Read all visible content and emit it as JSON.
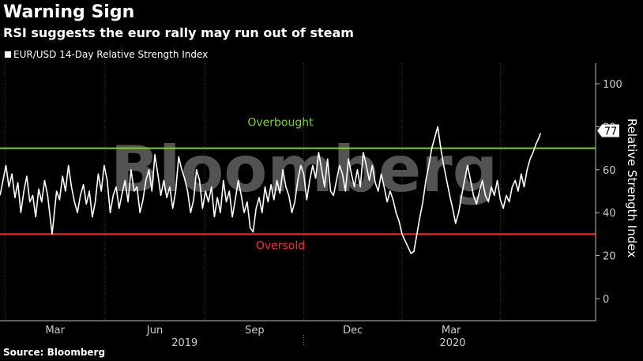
{
  "title": "Warning Sign",
  "subtitle": "RSI suggests the euro rally may run out of steam",
  "source": "Source: Bloomberg",
  "watermark": "Bloomberg",
  "colors": {
    "line": "#ffffff",
    "overbought": "#7ed321",
    "oversold": "#ff2a2a",
    "background": "#000000"
  },
  "chart_data": {
    "type": "line",
    "ylabel": "Relative Strength Index",
    "ylim": [
      0,
      100
    ],
    "yticks": [
      0,
      20,
      40,
      60,
      80,
      100
    ],
    "xlim": [
      0,
      400
    ],
    "month_ticks": [
      {
        "label": "Mar",
        "x": 37
      },
      {
        "label": "Jun",
        "x": 104
      },
      {
        "label": "Sep",
        "x": 171
      },
      {
        "label": "Dec",
        "x": 237
      },
      {
        "label": "Mar",
        "x": 303
      }
    ],
    "year_ticks": [
      {
        "label": "2019",
        "x": 124
      },
      {
        "label": "2020",
        "x": 304
      }
    ],
    "thresholds": [
      {
        "label": "Overbought",
        "value": 70
      },
      {
        "label": "Oversold",
        "value": 30
      }
    ],
    "last_value_label": "77",
    "series": [
      {
        "values": [
          [
            0,
            48
          ],
          [
            2,
            55
          ],
          [
            4,
            62
          ],
          [
            6,
            52
          ],
          [
            8,
            58
          ],
          [
            10,
            47
          ],
          [
            12,
            54
          ],
          [
            14,
            40
          ],
          [
            16,
            50
          ],
          [
            18,
            57
          ],
          [
            20,
            45
          ],
          [
            22,
            48
          ],
          [
            24,
            38
          ],
          [
            26,
            51
          ],
          [
            28,
            45
          ],
          [
            30,
            55
          ],
          [
            32,
            48
          ],
          [
            35,
            30
          ],
          [
            38,
            50
          ],
          [
            40,
            46
          ],
          [
            42,
            57
          ],
          [
            44,
            50
          ],
          [
            46,
            62
          ],
          [
            48,
            52
          ],
          [
            50,
            45
          ],
          [
            52,
            40
          ],
          [
            54,
            48
          ],
          [
            56,
            53
          ],
          [
            58,
            44
          ],
          [
            60,
            50
          ],
          [
            62,
            38
          ],
          [
            64,
            45
          ],
          [
            66,
            58
          ],
          [
            68,
            50
          ],
          [
            70,
            62
          ],
          [
            72,
            55
          ],
          [
            74,
            40
          ],
          [
            76,
            48
          ],
          [
            78,
            52
          ],
          [
            80,
            42
          ],
          [
            82,
            49
          ],
          [
            84,
            55
          ],
          [
            86,
            45
          ],
          [
            88,
            60
          ],
          [
            90,
            50
          ],
          [
            92,
            52
          ],
          [
            94,
            40
          ],
          [
            96,
            46
          ],
          [
            98,
            55
          ],
          [
            100,
            60
          ],
          [
            102,
            50
          ],
          [
            104,
            67
          ],
          [
            106,
            58
          ],
          [
            108,
            48
          ],
          [
            110,
            55
          ],
          [
            112,
            47
          ],
          [
            114,
            52
          ],
          [
            116,
            42
          ],
          [
            118,
            50
          ],
          [
            120,
            66
          ],
          [
            122,
            60
          ],
          [
            124,
            56
          ],
          [
            126,
            50
          ],
          [
            128,
            40
          ],
          [
            130,
            46
          ],
          [
            132,
            60
          ],
          [
            134,
            55
          ],
          [
            136,
            42
          ],
          [
            138,
            50
          ],
          [
            140,
            45
          ],
          [
            142,
            52
          ],
          [
            144,
            38
          ],
          [
            146,
            47
          ],
          [
            148,
            40
          ],
          [
            150,
            55
          ],
          [
            152,
            45
          ],
          [
            154,
            50
          ],
          [
            156,
            38
          ],
          [
            158,
            46
          ],
          [
            160,
            55
          ],
          [
            162,
            48
          ],
          [
            164,
            40
          ],
          [
            166,
            45
          ],
          [
            168,
            33
          ],
          [
            170,
            31
          ],
          [
            172,
            42
          ],
          [
            174,
            47
          ],
          [
            176,
            40
          ],
          [
            178,
            52
          ],
          [
            180,
            45
          ],
          [
            182,
            53
          ],
          [
            184,
            46
          ],
          [
            186,
            55
          ],
          [
            188,
            49
          ],
          [
            190,
            60
          ],
          [
            192,
            52
          ],
          [
            194,
            48
          ],
          [
            196,
            40
          ],
          [
            198,
            45
          ],
          [
            200,
            55
          ],
          [
            202,
            62
          ],
          [
            204,
            58
          ],
          [
            206,
            46
          ],
          [
            208,
            55
          ],
          [
            210,
            62
          ],
          [
            212,
            56
          ],
          [
            214,
            68
          ],
          [
            216,
            60
          ],
          [
            218,
            52
          ],
          [
            220,
            65
          ],
          [
            222,
            50
          ],
          [
            224,
            48
          ],
          [
            226,
            55
          ],
          [
            228,
            62
          ],
          [
            230,
            58
          ],
          [
            232,
            50
          ],
          [
            234,
            65
          ],
          [
            236,
            58
          ],
          [
            238,
            52
          ],
          [
            240,
            60
          ],
          [
            242,
            52
          ],
          [
            244,
            68
          ],
          [
            246,
            62
          ],
          [
            248,
            55
          ],
          [
            250,
            62
          ],
          [
            252,
            54
          ],
          [
            254,
            50
          ],
          [
            256,
            58
          ],
          [
            258,
            52
          ],
          [
            260,
            45
          ],
          [
            262,
            50
          ],
          [
            264,
            46
          ],
          [
            266,
            40
          ],
          [
            268,
            36
          ],
          [
            270,
            30
          ],
          [
            272,
            27
          ],
          [
            274,
            24
          ],
          [
            276,
            21
          ],
          [
            278,
            22
          ],
          [
            280,
            30
          ],
          [
            282,
            38
          ],
          [
            284,
            45
          ],
          [
            286,
            55
          ],
          [
            288,
            62
          ],
          [
            290,
            70
          ],
          [
            292,
            75
          ],
          [
            294,
            80
          ],
          [
            296,
            70
          ],
          [
            298,
            62
          ],
          [
            300,
            55
          ],
          [
            302,
            48
          ],
          [
            304,
            42
          ],
          [
            306,
            35
          ],
          [
            308,
            40
          ],
          [
            310,
            48
          ],
          [
            312,
            55
          ],
          [
            314,
            62
          ],
          [
            316,
            55
          ],
          [
            318,
            48
          ],
          [
            320,
            44
          ],
          [
            322,
            50
          ],
          [
            324,
            55
          ],
          [
            326,
            48
          ],
          [
            328,
            45
          ],
          [
            330,
            52
          ],
          [
            332,
            48
          ],
          [
            334,
            55
          ],
          [
            336,
            46
          ],
          [
            338,
            42
          ],
          [
            340,
            48
          ],
          [
            342,
            45
          ],
          [
            344,
            52
          ],
          [
            346,
            55
          ],
          [
            348,
            50
          ],
          [
            350,
            58
          ],
          [
            352,
            52
          ],
          [
            354,
            60
          ],
          [
            356,
            65
          ],
          [
            358,
            68
          ],
          [
            360,
            72
          ],
          [
            362,
            75
          ],
          [
            363,
            77
          ]
        ]
      }
    ]
  }
}
